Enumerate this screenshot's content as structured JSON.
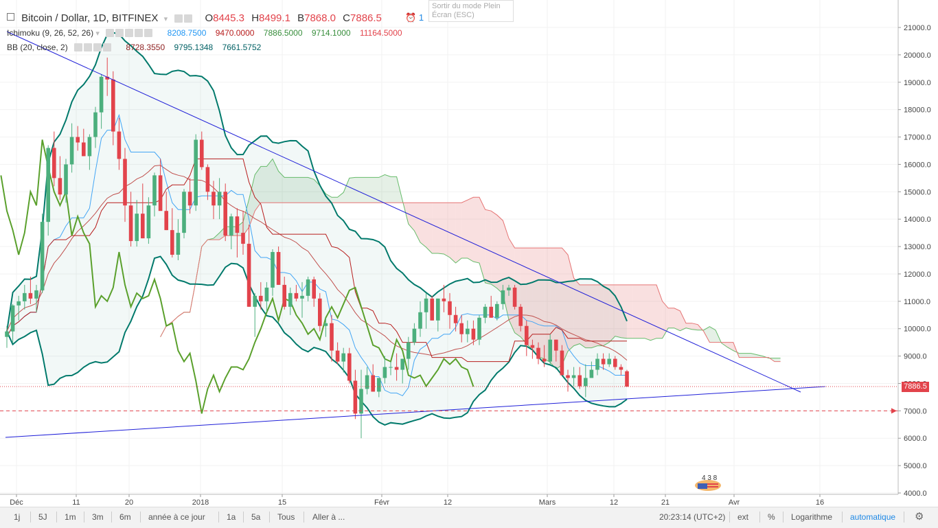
{
  "header": {
    "symbol": "Bitcoin / Dollar, 1D, BITFINEX",
    "ohlc": {
      "o_label": "O",
      "o_value": "8445.3",
      "h_label": "H",
      "h_value": "8499.1",
      "b_label": "B",
      "b_value": "7868.0",
      "c_label": "C",
      "c_value": "7886.5"
    },
    "alarm_count": "1"
  },
  "fullscreen_tip": "Sortir du mode Plein Écran (ESC)",
  "indicators": {
    "ichimoku": {
      "label": "Ichimoku (9, 26, 52, 26)",
      "values": [
        "8208.7500",
        "9470.0000",
        "7886.5000",
        "9714.1000",
        "11164.5000"
      ],
      "colors": [
        "#2196f3",
        "#b71c1c",
        "#388e3c",
        "#388e3c",
        "#e2434b"
      ]
    },
    "bb": {
      "label": "BB (20, close, 2)",
      "values": [
        "8728.3550",
        "9795.1348",
        "7661.5752"
      ],
      "colors": [
        "#8d1f1f",
        "#006064",
        "#006064"
      ]
    }
  },
  "price_axis": {
    "ticks": [
      "21000.0",
      "20000.0",
      "19000.0",
      "18000.0",
      "17000.0",
      "16000.0",
      "15000.0",
      "14000.0",
      "13000.0",
      "12000.0",
      "11000.0",
      "10000.0",
      "9000.0",
      "8000.0",
      "7000.0",
      "6000.0",
      "5000.0",
      "4000.0"
    ],
    "last_price_label": "7886.5"
  },
  "time_axis": {
    "ticks": [
      "Déc",
      "11",
      "20",
      "2018",
      "15",
      "Févr",
      "12",
      "Mars",
      "12",
      "21",
      "Avr",
      "16"
    ]
  },
  "bottom_bar": {
    "ranges": [
      "1j",
      "5J",
      "1m",
      "3m",
      "6m",
      "année à ce jour",
      "1a",
      "5a",
      "Tous",
      "Aller à ..."
    ],
    "clock": "20:23:14 (UTC+2)",
    "options": [
      "ext",
      "%",
      "Logarithme",
      "automatique"
    ]
  },
  "logo_text": "4 3 8",
  "chart_data": {
    "type": "candlestick",
    "title": "Bitcoin / Dollar, 1D, BITFINEX",
    "y_range": [
      4000,
      21000
    ],
    "last_close": 7886.5,
    "colors": {
      "up": "#4caf7d",
      "down": "#e2434b",
      "ichimoku_cloud_bull": "#388e3c",
      "ichimoku_cloud_bear": "#e57373",
      "trendline": "#1e1ed8",
      "bb": "#00796b",
      "tenkan": "#42a5f5",
      "kijun": "#b71c1c",
      "chikou": "#5aa02c"
    },
    "candles_ohlc": [
      [
        9700,
        10100,
        9300,
        9900
      ],
      [
        9900,
        10900,
        9500,
        10850
      ],
      [
        10850,
        11200,
        10300,
        11000
      ],
      [
        11000,
        11600,
        10700,
        11300
      ],
      [
        11300,
        11900,
        10900,
        11100
      ],
      [
        11100,
        11600,
        10600,
        11400
      ],
      [
        11400,
        14200,
        11300,
        13900
      ],
      [
        13900,
        16700,
        13400,
        16600
      ],
      [
        16600,
        17200,
        15200,
        15500
      ],
      [
        15500,
        16300,
        14700,
        14900
      ],
      [
        14900,
        16200,
        14600,
        16000
      ],
      [
        16000,
        17500,
        15700,
        17000
      ],
      [
        17000,
        17400,
        16500,
        16800
      ],
      [
        16800,
        17300,
        16300,
        16300
      ],
      [
        16300,
        17100,
        15800,
        17000
      ],
      [
        17000,
        18100,
        16600,
        17900
      ],
      [
        17900,
        19300,
        17300,
        19200
      ],
      [
        19200,
        19900,
        18500,
        19100
      ],
      [
        19100,
        19400,
        16700,
        17200
      ],
      [
        17200,
        17700,
        15800,
        16200
      ],
      [
        16200,
        16600,
        13900,
        14500
      ],
      [
        14500,
        15000,
        13000,
        13200
      ],
      [
        13200,
        14700,
        13000,
        14200
      ],
      [
        14200,
        15300,
        13300,
        13300
      ],
      [
        13300,
        14800,
        13100,
        14500
      ],
      [
        14500,
        15700,
        14100,
        15600
      ],
      [
        15600,
        16200,
        14500,
        14300
      ],
      [
        14300,
        15000,
        13600,
        13600
      ],
      [
        13600,
        14400,
        12600,
        12700
      ],
      [
        12700,
        14000,
        12500,
        13500
      ],
      [
        13500,
        15100,
        13300,
        15000
      ],
      [
        15000,
        15500,
        14200,
        14500
      ],
      [
        14500,
        17100,
        14300,
        16900
      ],
      [
        16900,
        17200,
        15800,
        15900
      ],
      [
        15900,
        16000,
        14700,
        15000
      ],
      [
        15000,
        15400,
        14000,
        14500
      ],
      [
        14500,
        15500,
        14000,
        15000
      ],
      [
        15000,
        15300,
        13200,
        13400
      ],
      [
        13400,
        14200,
        12900,
        14100
      ],
      [
        14100,
        14400,
        12600,
        13500
      ],
      [
        13500,
        14300,
        12700,
        13100
      ],
      [
        13100,
        13800,
        10800,
        10800
      ],
      [
        10800,
        11300,
        9700,
        11200
      ],
      [
        11200,
        11700,
        10700,
        11000
      ],
      [
        11000,
        11700,
        10600,
        11500
      ],
      [
        11500,
        12900,
        11200,
        12800
      ],
      [
        12800,
        13000,
        11600,
        11600
      ],
      [
        11600,
        11900,
        10700,
        10800
      ],
      [
        10800,
        11500,
        10500,
        11300
      ],
      [
        11300,
        11600,
        11000,
        11100
      ],
      [
        11100,
        11700,
        10400,
        11200
      ],
      [
        11200,
        11900,
        11000,
        11800
      ],
      [
        11800,
        11900,
        10800,
        11100
      ],
      [
        11100,
        11300,
        9900,
        10100
      ],
      [
        10100,
        10400,
        9700,
        10200
      ],
      [
        10200,
        10500,
        8800,
        9200
      ],
      [
        9200,
        9500,
        8700,
        8800
      ],
      [
        8800,
        9300,
        8400,
        9100
      ],
      [
        9100,
        9300,
        8000,
        8100
      ],
      [
        8100,
        8500,
        6700,
        6900
      ],
      [
        6900,
        8500,
        6000,
        7800
      ],
      [
        7800,
        8600,
        7600,
        8300
      ],
      [
        8300,
        8700,
        7700,
        7700
      ],
      [
        7700,
        8200,
        7500,
        8200
      ],
      [
        8200,
        9000,
        8000,
        8600
      ],
      [
        8600,
        8800,
        8300,
        8600
      ],
      [
        8600,
        9100,
        8100,
        8500
      ],
      [
        8500,
        8900,
        8000,
        8900
      ],
      [
        8900,
        9700,
        8500,
        9500
      ],
      [
        9500,
        10200,
        9400,
        10000
      ],
      [
        10000,
        11000,
        9700,
        10600
      ],
      [
        10600,
        11300,
        10000,
        11100
      ],
      [
        11100,
        11200,
        10300,
        10300
      ],
      [
        10300,
        11100,
        9900,
        11100
      ],
      [
        11100,
        11600,
        10600,
        11000
      ],
      [
        11000,
        11300,
        10000,
        10500
      ],
      [
        10500,
        10800,
        9900,
        10200
      ],
      [
        10200,
        10500,
        9500,
        9800
      ],
      [
        9800,
        10300,
        9500,
        10000
      ],
      [
        10000,
        10300,
        9400,
        9600
      ],
      [
        9600,
        10500,
        9400,
        10400
      ],
      [
        10400,
        10900,
        10200,
        10800
      ],
      [
        10800,
        11200,
        10400,
        10400
      ],
      [
        10400,
        11000,
        10300,
        10900
      ],
      [
        10900,
        11600,
        10700,
        11400
      ],
      [
        11400,
        11600,
        11200,
        11500
      ],
      [
        11500,
        11600,
        10700,
        10800
      ],
      [
        10800,
        10900,
        9900,
        10100
      ],
      [
        10100,
        10300,
        9000,
        9400
      ],
      [
        9400,
        9600,
        8900,
        9300
      ],
      [
        9300,
        9500,
        8700,
        8900
      ],
      [
        8900,
        9400,
        8600,
        8800
      ],
      [
        8800,
        9800,
        8700,
        9600
      ],
      [
        9600,
        9600,
        8800,
        9200
      ],
      [
        9200,
        9400,
        8300,
        8300
      ],
      [
        8300,
        8500,
        7700,
        8200
      ],
      [
        8200,
        8600,
        7900,
        8300
      ],
      [
        8300,
        8600,
        7800,
        7900
      ],
      [
        7900,
        8700,
        7500,
        8200
      ],
      [
        8200,
        8800,
        8200,
        8500
      ],
      [
        8500,
        9100,
        8300,
        8900
      ],
      [
        8900,
        9100,
        8500,
        8700
      ],
      [
        8700,
        9100,
        8600,
        8900
      ],
      [
        8900,
        9000,
        8500,
        8600
      ],
      [
        8600,
        8700,
        8300,
        8500
      ],
      [
        8445.3,
        8499.1,
        7868.0,
        7886.5
      ]
    ],
    "ichimoku": {
      "tenkan": 8208.75,
      "kijun": 9470.0,
      "chikou": 7886.5,
      "senkou_a": 9714.1,
      "senkou_b": 11164.5
    },
    "bollinger": {
      "basis": 8728.355,
      "upper": 9795.1348,
      "lower": 7661.5752
    },
    "levels": [
      {
        "price": 7000,
        "style": "dashed",
        "color": "#e2434b"
      }
    ]
  }
}
